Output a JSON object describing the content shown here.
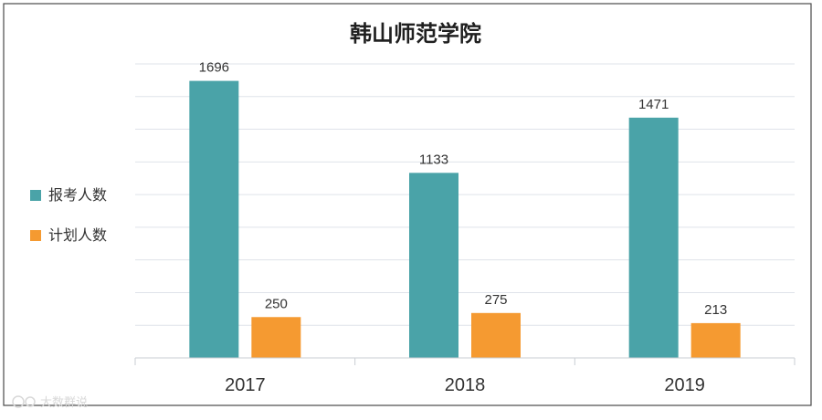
{
  "chart_data": {
    "type": "bar",
    "title": "韩山师范学院",
    "categories": [
      "2017",
      "2018",
      "2019"
    ],
    "series": [
      {
        "name": "报考人数",
        "values": [
          1696,
          1133,
          1471
        ],
        "color": "#4aa3a8"
      },
      {
        "name": "计划人数",
        "values": [
          250,
          275,
          213
        ],
        "color": "#f59a31"
      }
    ],
    "ylim": [
      0,
      1800
    ],
    "grid": true,
    "legend": "left"
  },
  "watermark": {
    "text": "大数群说",
    "icon": "mascot-icon"
  }
}
